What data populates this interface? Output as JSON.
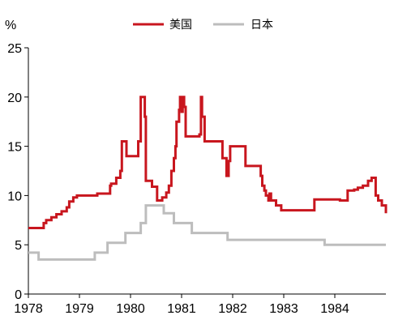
{
  "chart_data": {
    "type": "line",
    "unit_label": "%",
    "xlim": [
      1978.0,
      1985.0
    ],
    "ylim": [
      0,
      25
    ],
    "x_ticks": [
      "1978",
      "1979",
      "1980",
      "1981",
      "1982",
      "1983",
      "1984"
    ],
    "y_ticks": [
      "0",
      "5",
      "10",
      "15",
      "20",
      "25"
    ],
    "legend_position": "top-center",
    "grid": false,
    "series": [
      {
        "name": "美国",
        "color": "#C8161E",
        "x": [
          1978.0,
          1978.3,
          1978.35,
          1978.45,
          1978.55,
          1978.65,
          1978.75,
          1978.8,
          1978.88,
          1978.95,
          1979.35,
          1979.6,
          1979.62,
          1979.72,
          1979.8,
          1979.83,
          1979.92,
          1980.15,
          1980.2,
          1980.28,
          1980.3,
          1980.42,
          1980.52,
          1980.62,
          1980.7,
          1980.75,
          1980.8,
          1980.85,
          1980.88,
          1980.9,
          1980.95,
          1980.97,
          1981.0,
          1981.02,
          1981.05,
          1981.08,
          1981.35,
          1981.38,
          1981.4,
          1981.45,
          1981.8,
          1981.88,
          1981.92,
          1981.95,
          1982.25,
          1982.55,
          1982.58,
          1982.62,
          1982.65,
          1982.7,
          1982.72,
          1982.75,
          1982.85,
          1982.95,
          1983.3,
          1983.6,
          1984.1,
          1984.25,
          1984.38,
          1984.45,
          1984.55,
          1984.65,
          1984.72,
          1984.8,
          1984.85,
          1984.92,
          1985.0
        ],
        "y": [
          6.7,
          7.2,
          7.5,
          7.8,
          8.1,
          8.4,
          8.8,
          9.4,
          9.8,
          10.0,
          10.2,
          11.0,
          11.2,
          11.8,
          12.5,
          15.5,
          14.0,
          15.5,
          20.0,
          18.0,
          11.5,
          10.9,
          9.5,
          9.8,
          10.3,
          11.0,
          12.5,
          13.8,
          15.0,
          17.5,
          18.7,
          20.0,
          18.5,
          20.0,
          19.0,
          16.0,
          16.2,
          20.0,
          18.0,
          15.5,
          13.8,
          12.0,
          13.5,
          15.0,
          13.0,
          12.0,
          11.0,
          10.5,
          10.0,
          9.5,
          10.2,
          9.5,
          9.0,
          8.5,
          8.5,
          9.6,
          9.5,
          10.5,
          10.6,
          10.8,
          11.0,
          11.5,
          11.8,
          10.0,
          9.5,
          9.0,
          8.2
        ]
      },
      {
        "name": "日本",
        "color": "#BDBDBD",
        "x": [
          1978.0,
          1978.2,
          1979.3,
          1979.55,
          1979.9,
          1980.2,
          1980.3,
          1980.65,
          1980.85,
          1981.2,
          1981.9,
          1983.8,
          1985.0
        ],
        "y": [
          4.2,
          3.5,
          4.2,
          5.2,
          6.2,
          7.2,
          9.0,
          8.2,
          7.2,
          6.2,
          5.5,
          5.0,
          5.0
        ]
      }
    ]
  }
}
